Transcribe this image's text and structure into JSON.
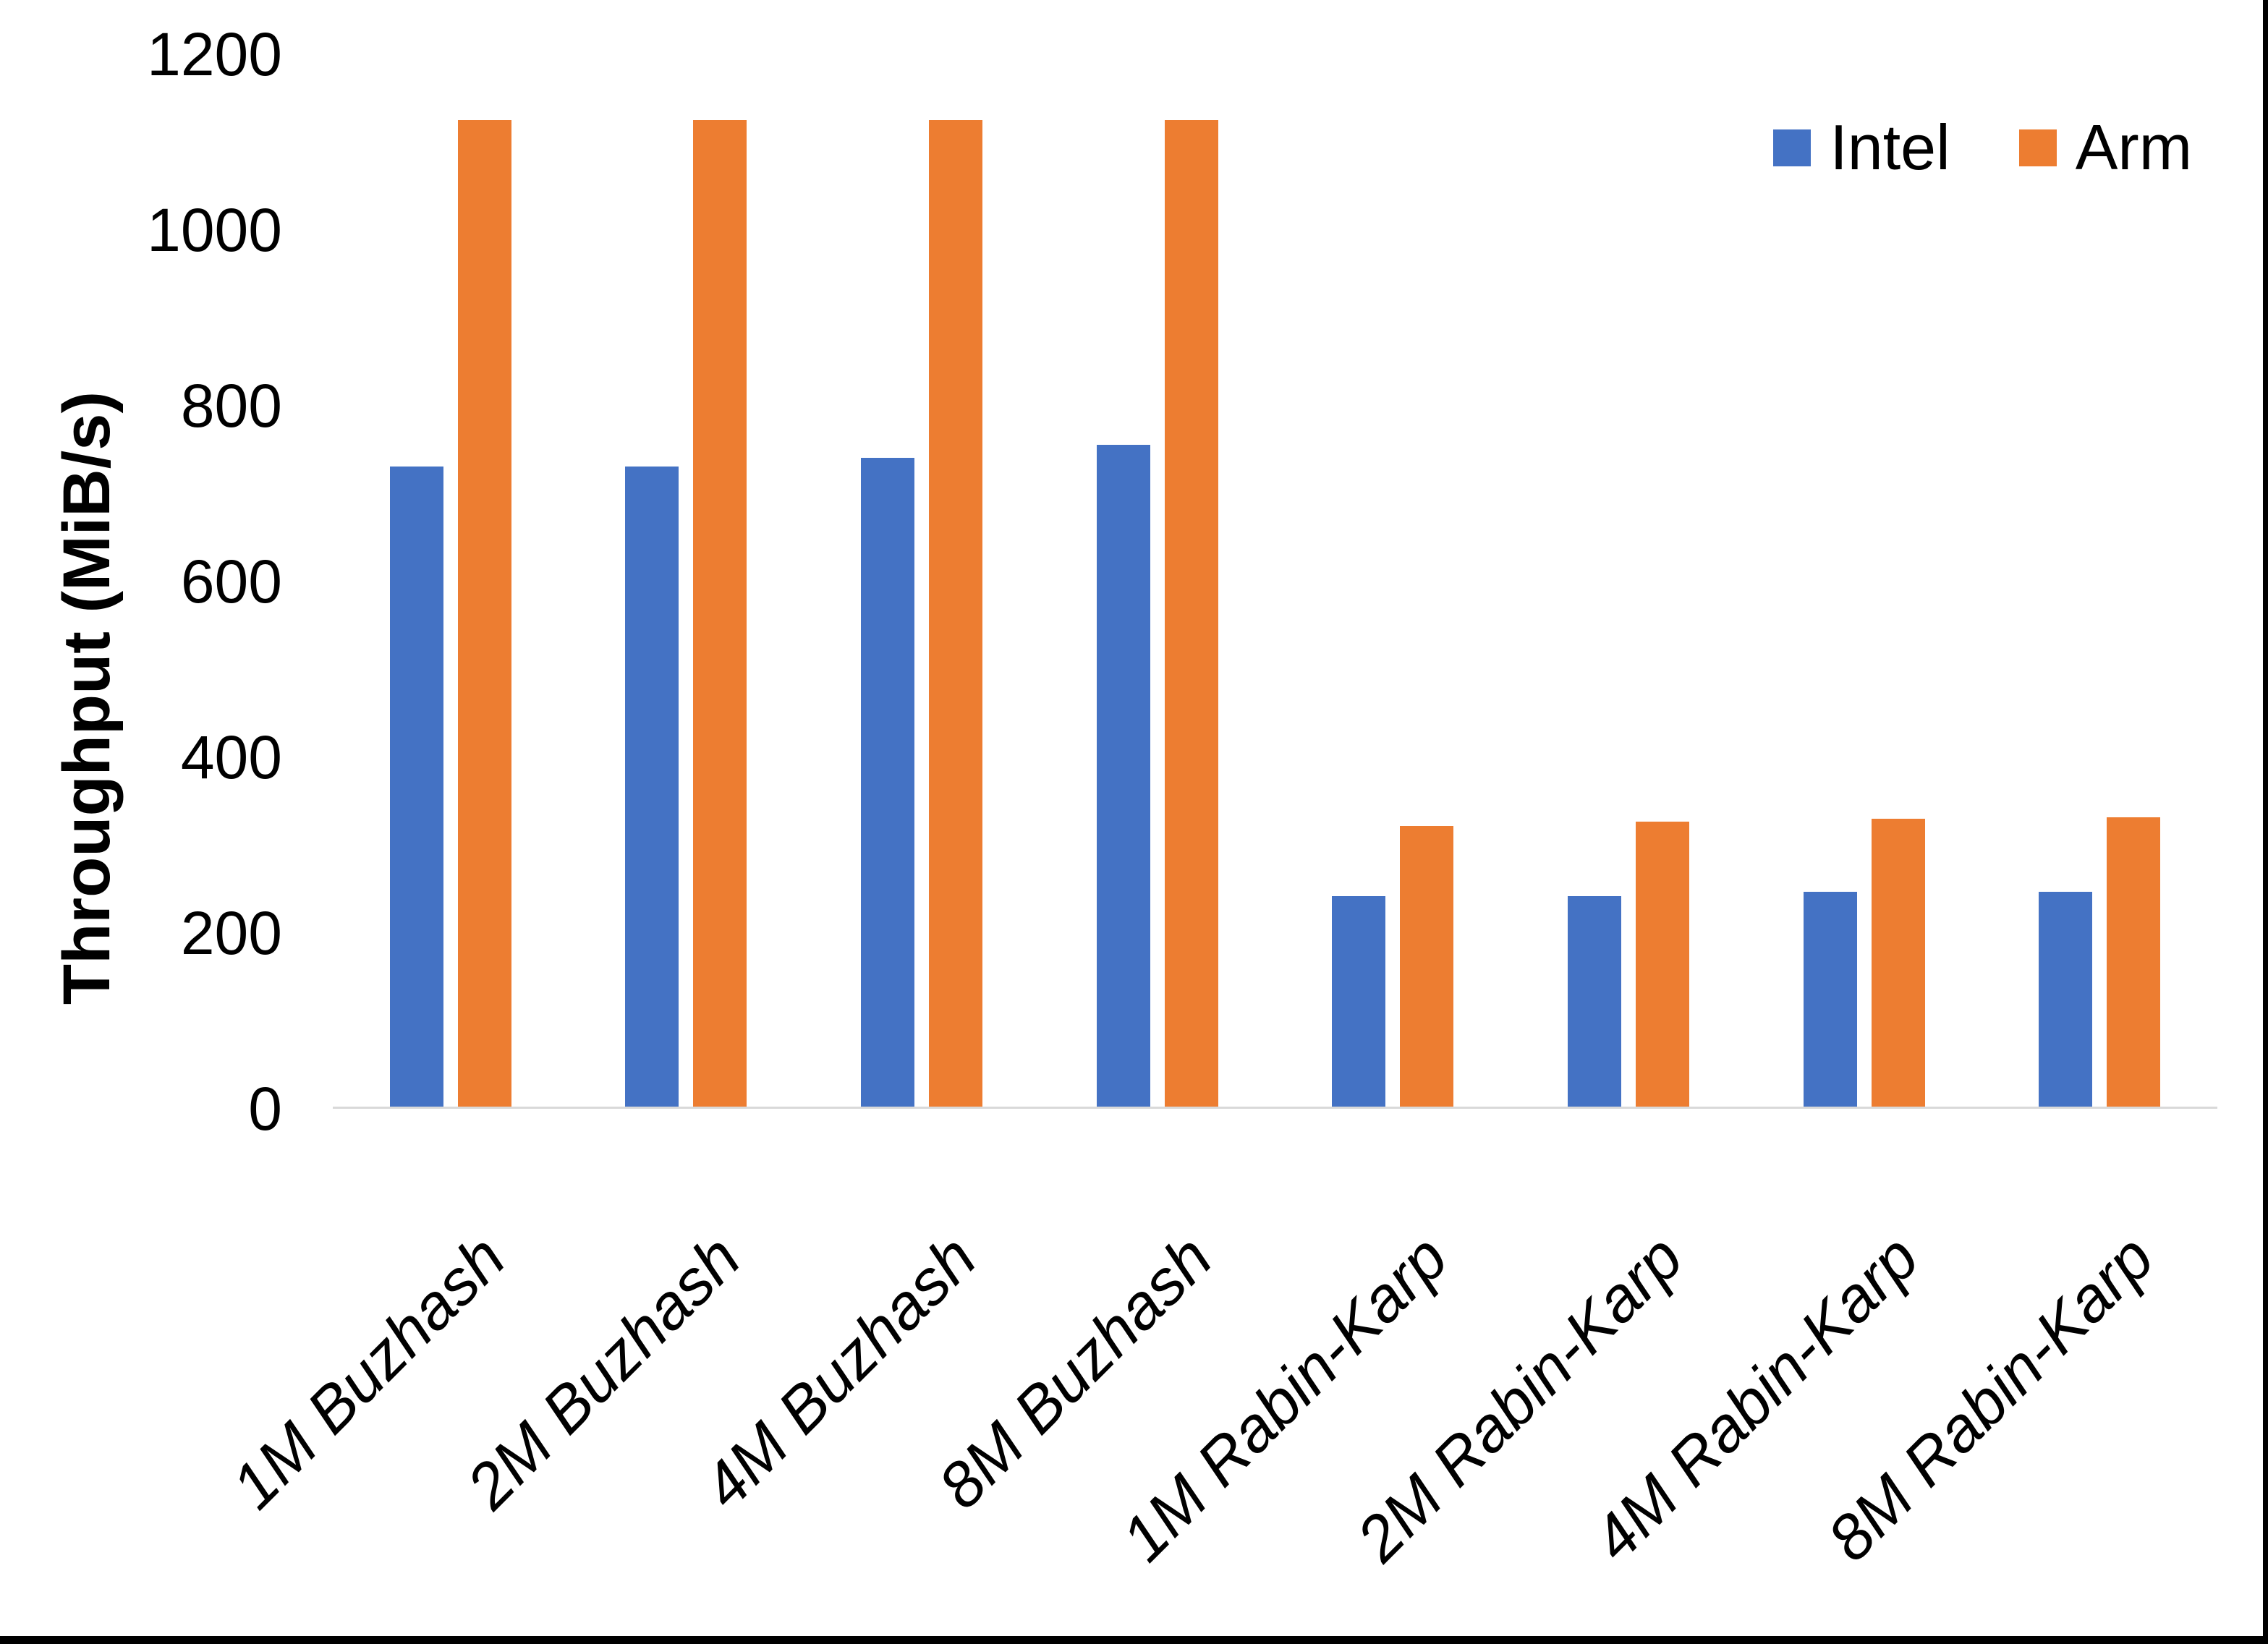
{
  "figure": {
    "background": "#FFFFFF",
    "window_edge_color": "#000000"
  },
  "chart_data": {
    "type": "bar",
    "title": "",
    "xlabel": "",
    "ylabel": "Throughput (MiB/s)",
    "ylim": [
      0,
      1200
    ],
    "ytick_step": 200,
    "yticks": [
      1200,
      1000,
      800,
      600,
      400,
      200,
      0
    ],
    "grid": false,
    "axis_line_color": "#D9D9D9",
    "legend_position": "top-right",
    "categories": [
      "1M Buzhash",
      "2M Buzhash",
      "4M Buzhash",
      "8M Buzhash",
      "1M Rabin-Karp",
      "2M Rabin-Karp",
      "4M Rabin-Karp",
      "8M Rabin-Karp"
    ],
    "series": [
      {
        "name": "Intel",
        "color": "#4472C4",
        "values": [
          730,
          730,
          740,
          755,
          240,
          240,
          245,
          245
        ]
      },
      {
        "name": "Arm",
        "color": "#ED7D31",
        "values": [
          1125,
          1125,
          1125,
          1125,
          320,
          325,
          328,
          330
        ]
      }
    ]
  }
}
